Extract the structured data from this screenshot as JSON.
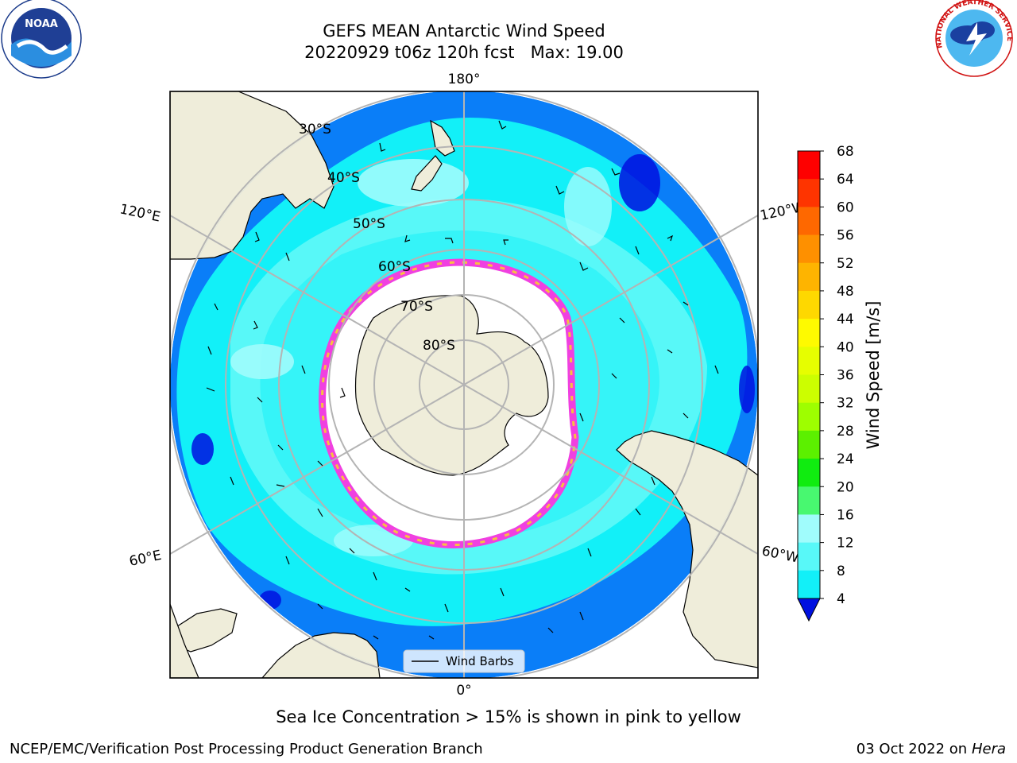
{
  "title": {
    "line1": "GEFS MEAN Antarctic Wind Speed",
    "line2": "20220929 t06z 120h fcst   Max: 19.00"
  },
  "logos": {
    "left": {
      "icon": "noaa-logo-icon",
      "text": "NOAA"
    },
    "right": {
      "icon": "nws-logo-icon",
      "text": "NATIONAL WEATHER SERVICE"
    }
  },
  "map": {
    "projection": "south-polar-stereographic",
    "longitude_labels": {
      "top": "180°",
      "bottom": "0°",
      "upper_left": "120°E",
      "lower_left": "60°E",
      "upper_right": "120°W",
      "lower_right": "60°W"
    },
    "latitude_labels": [
      "30°S",
      "40°S",
      "50°S",
      "60°S",
      "70°S",
      "80°S"
    ],
    "legend_label": "Wind Barbs",
    "colors": {
      "land": "#efedda",
      "ocean_low": "#0a7ef8",
      "ocean_mid": "#12f0f8",
      "ocean_high": "#58f8f8",
      "sea_ice_edge": "#f040e0",
      "sea_ice_inner": "#f8c040",
      "grid": "#b4b4b4"
    }
  },
  "colorbar": {
    "label": "Wind Speed [m/s]",
    "ticks": [
      "68",
      "64",
      "60",
      "56",
      "52",
      "48",
      "44",
      "40",
      "36",
      "32",
      "28",
      "24",
      "20",
      "16",
      "12",
      "8",
      "4"
    ],
    "colors": [
      "#fe0000",
      "#fe3400",
      "#fe6800",
      "#fe9000",
      "#feb400",
      "#fed800",
      "#fefa00",
      "#e6fe00",
      "#ccfe00",
      "#9efe00",
      "#5cf000",
      "#10ec10",
      "#48f870",
      "#a0fcfc",
      "#58f8f8",
      "#12f0f8",
      "#0a7ef8",
      "#0010e0"
    ],
    "extend_color": "#0010e0"
  },
  "footnote": "Sea Ice Concentration > 15% is shown in pink to yellow",
  "credit_left": "NCEP/EMC/Verification Post Processing Product Generation Branch",
  "credit_right_date": "03 Oct 2022 on ",
  "credit_right_machine": "Hera"
}
